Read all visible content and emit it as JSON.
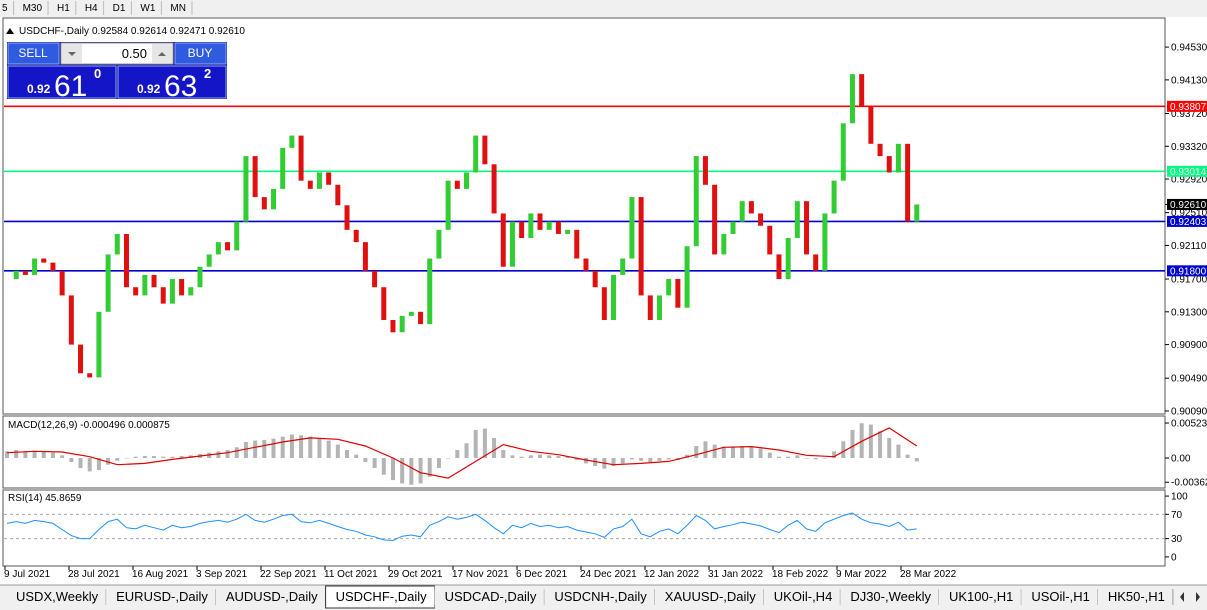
{
  "toolbar": {
    "timeframes": [
      "5",
      "M30",
      "H1",
      "H4",
      "D1",
      "W1",
      "MN"
    ]
  },
  "trade_panel": {
    "sell": "SELL",
    "lot": "0.50",
    "buy": "BUY",
    "bid": {
      "prefix": "0.92",
      "big": "61",
      "small": "0"
    },
    "ask": {
      "prefix": "0.92",
      "big": "63",
      "small": "2"
    }
  },
  "chart_data": {
    "type": "candlestick",
    "title": "USDCHF-,Daily",
    "ohlc_text": "0.92584 0.92614 0.92471 0.92610",
    "up_color": "#32cd32",
    "down_color": "#e01010",
    "closes": [
      0.917,
      0.918,
      0.9175,
      0.9195,
      0.919,
      0.918,
      0.915,
      0.909,
      0.9055,
      0.905,
      0.913,
      0.92,
      0.9225,
      0.916,
      0.915,
      0.9175,
      0.916,
      0.914,
      0.917,
      0.915,
      0.916,
      0.9185,
      0.92,
      0.9215,
      0.9205,
      0.924,
      0.932,
      0.927,
      0.9255,
      0.928,
      0.933,
      0.9345,
      0.929,
      0.928,
      0.93,
      0.9285,
      0.926,
      0.923,
      0.9215,
      0.918,
      0.916,
      0.912,
      0.9105,
      0.9125,
      0.913,
      0.9115,
      0.9195,
      0.923,
      0.929,
      0.928,
      0.93,
      0.9345,
      0.931,
      0.925,
      0.9185,
      0.924,
      0.922,
      0.925,
      0.923,
      0.924,
      0.9225,
      0.923,
      0.9195,
      0.918,
      0.916,
      0.912,
      0.9175,
      0.9195,
      0.927,
      0.915,
      0.912,
      0.915,
      0.917,
      0.9135,
      0.921,
      0.932,
      0.9285,
      0.92,
      0.9225,
      0.924,
      0.9265,
      0.925,
      0.9235,
      0.92,
      0.917,
      0.922,
      0.9265,
      0.92,
      0.918,
      0.925,
      0.929,
      0.936,
      0.942,
      0.938,
      0.9335,
      0.932,
      0.93,
      0.9335,
      0.924,
      0.9261
    ],
    "ylim": [
      0.90053,
      0.94885
    ],
    "yticks": [
      {
        "value": 0.9453,
        "label": "0.94530"
      },
      {
        "value": 0.9413,
        "label": "0.94130"
      },
      {
        "value": 0.9372,
        "label": "0.93720"
      },
      {
        "value": 0.9332,
        "label": "0.93320"
      },
      {
        "value": 0.9292,
        "label": "0.92920"
      },
      {
        "value": 0.9251,
        "label": "0.92510"
      },
      {
        "value": 0.9211,
        "label": "0.92110"
      },
      {
        "value": 0.917,
        "label": "0.91700"
      },
      {
        "value": 0.913,
        "label": "0.91300"
      },
      {
        "value": 0.909,
        "label": "0.90900"
      },
      {
        "value": 0.9049,
        "label": "0.90490"
      },
      {
        "value": 0.9009,
        "label": "0.90090"
      }
    ],
    "levels": [
      {
        "value": 0.93807,
        "label": "0.93807",
        "color": "#ff0000"
      },
      {
        "value": 0.93014,
        "label": "0.93014",
        "color": "#00ff7f"
      },
      {
        "value": 0.92403,
        "label": "0.92403",
        "color": "#0000cd"
      },
      {
        "value": 0.918,
        "label": "0.91800",
        "color": "#0000cd"
      }
    ],
    "current": {
      "value": 0.9261,
      "label": "0.92610"
    },
    "xticks": [
      "9 Jul 2021",
      "28 Jul 2021",
      "16 Aug 2021",
      "3 Sep 2021",
      "22 Sep 2021",
      "11 Oct 2021",
      "29 Oct 2021",
      "17 Nov 2021",
      "6 Dec 2021",
      "24 Dec 2021",
      "12 Jan 2022",
      "31 Jan 2022",
      "18 Feb 2022",
      "9 Mar 2022",
      "28 Mar 2022"
    ]
  },
  "macd": {
    "label": "MACD(12,26,9) -0.000496 0.000875",
    "hist_color": "#b4b4b4",
    "signal_color": "#e00000",
    "histogram": [
      0.001,
      0.0012,
      0.001,
      0.0011,
      0.0009,
      0.0008,
      0.0004,
      -0.0006,
      -0.0015,
      -0.002,
      -0.0018,
      -0.001,
      -0.0004,
      0.0,
      0.0002,
      0.0003,
      0.0003,
      0.0002,
      0.0002,
      0.0003,
      0.0004,
      0.0006,
      0.0008,
      0.001,
      0.0012,
      0.0016,
      0.0024,
      0.0026,
      0.0027,
      0.0029,
      0.0032,
      0.0035,
      0.0034,
      0.0032,
      0.003,
      0.0026,
      0.002,
      0.0012,
      0.0005,
      -0.0006,
      -0.0015,
      -0.0025,
      -0.0033,
      -0.0038,
      -0.004,
      -0.0038,
      -0.0028,
      -0.0015,
      0.0,
      0.0012,
      0.0022,
      0.0042,
      0.0044,
      0.003,
      0.0012,
      0.0004,
      0.0002,
      0.0004,
      0.0005,
      0.0004,
      0.0003,
      0.0002,
      -0.0003,
      -0.0008,
      -0.0012,
      -0.0016,
      -0.0012,
      -0.0008,
      -0.0002,
      -0.0004,
      -0.0006,
      -0.0004,
      -0.0002,
      -0.0003,
      0.0005,
      0.0018,
      0.0025,
      0.002,
      0.0017,
      0.0017,
      0.0018,
      0.0016,
      0.0014,
      0.0008,
      0.0002,
      0.0002,
      0.0004,
      0.0,
      -0.0002,
      0.0,
      0.001,
      0.0025,
      0.0042,
      0.0052,
      0.005,
      0.004,
      0.003,
      0.002,
      0.0005,
      -0.0005
    ],
    "signal": [
      0.0008,
      0.001,
      0.0009,
      0.0002,
      -0.001,
      -0.0008,
      -0.0002,
      0.0003,
      0.0008,
      0.0016,
      0.0024,
      0.003,
      0.0028,
      0.0018,
      0.0,
      -0.0022,
      -0.003,
      -0.0005,
      0.002,
      0.001,
      0.0005,
      -0.0003,
      -0.001,
      -0.0008,
      -0.0005,
      0.0005,
      0.0016,
      0.0017,
      0.0012,
      0.0004,
      0.0002,
      0.0025,
      0.0045,
      0.0018
    ],
    "ylim": [
      -0.00448,
      0.00628
    ],
    "yticks": [
      {
        "value": 0.00523,
        "label": "0.00523"
      },
      {
        "value": 0,
        "label": "0.00"
      },
      {
        "value": -0.00362,
        "label": "-0.00362"
      }
    ]
  },
  "rsi": {
    "label": "RSI(14) 45.8659",
    "color": "#1e90ff",
    "values": [
      55,
      58,
      55,
      60,
      58,
      55,
      45,
      35,
      30,
      30,
      45,
      58,
      62,
      48,
      46,
      52,
      48,
      44,
      52,
      48,
      50,
      55,
      58,
      60,
      57,
      62,
      70,
      60,
      57,
      62,
      68,
      70,
      58,
      56,
      60,
      55,
      50,
      45,
      42,
      36,
      33,
      28,
      27,
      34,
      36,
      33,
      52,
      58,
      66,
      62,
      65,
      70,
      60,
      48,
      38,
      52,
      48,
      55,
      50,
      52,
      48,
      50,
      44,
      41,
      38,
      32,
      46,
      50,
      62,
      38,
      33,
      42,
      46,
      38,
      52,
      68,
      60,
      46,
      50,
      53,
      57,
      54,
      51,
      45,
      40,
      52,
      60,
      46,
      42,
      56,
      62,
      68,
      72,
      62,
      56,
      54,
      50,
      57,
      44,
      46
    ],
    "ylim": [
      -15,
      110
    ],
    "yticks": [
      100,
      70,
      30,
      0
    ]
  },
  "tabs": {
    "items": [
      "USDX,Weekly",
      "EURUSD-,Daily",
      "AUDUSD-,Daily",
      "USDCHF-,Daily",
      "USDCAD-,Daily",
      "USDCNH-,Daily",
      "XAUUSD-,Daily",
      "UKOil-,H4",
      "DJ30-,Weekly",
      "UK100-,H1",
      "USOil-,H1",
      "HK50-,H1"
    ],
    "active": "USDCHF-,Daily"
  }
}
